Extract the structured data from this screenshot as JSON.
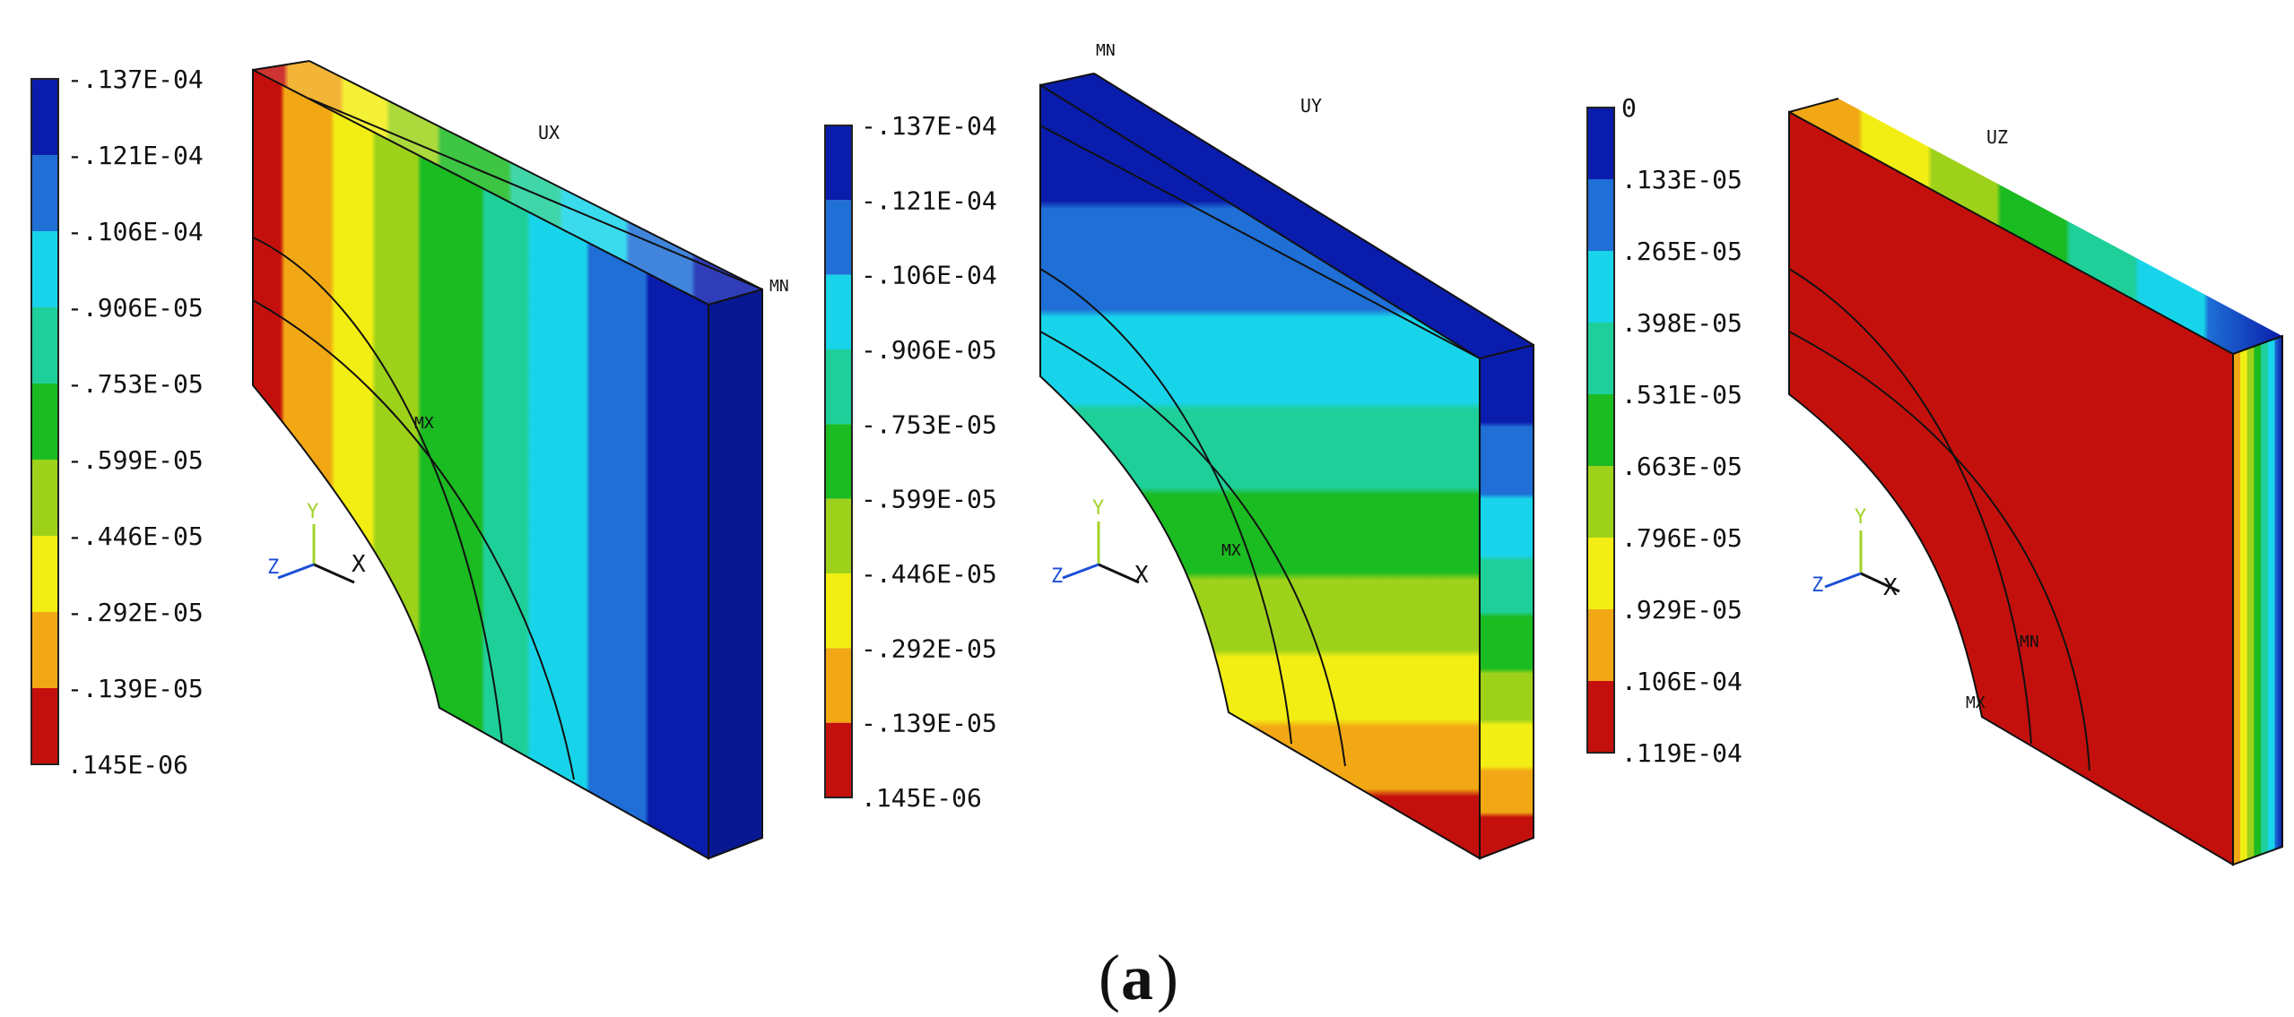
{
  "figure": {
    "caption_letter": "a",
    "panels": [
      {
        "id": "ux",
        "label": "UX",
        "min_tag": "MN",
        "max_tag": "MX",
        "legend": {
          "colors": [
            "#0a1cab",
            "#1f6fd6",
            "#18d4ea",
            "#1fcf9a",
            "#1bbb22",
            "#9ed21a",
            "#f2ee14",
            "#f1a814",
            "#c4100d"
          ],
          "labels": [
            "-.137E-04",
            "-.121E-04",
            "-.106E-04",
            "-.906E-05",
            "-.753E-05",
            "-.599E-05",
            "-.446E-05",
            "-.292E-05",
            "-.139E-05",
            ".145E-06"
          ]
        },
        "triad": {
          "y": "Y",
          "x": "X",
          "z": "Z"
        }
      },
      {
        "id": "uy",
        "label": "UY",
        "min_tag": "MN",
        "max_tag": "MX",
        "legend": {
          "colors": [
            "#0a1cab",
            "#1f6fd6",
            "#18d4ea",
            "#1fcf9a",
            "#1bbb22",
            "#9ed21a",
            "#f2ee14",
            "#f1a814",
            "#c4100d"
          ],
          "labels": [
            "-.137E-04",
            "-.121E-04",
            "-.106E-04",
            "-.906E-05",
            "-.753E-05",
            "-.599E-05",
            "-.446E-05",
            "-.292E-05",
            "-.139E-05",
            ".145E-06"
          ]
        },
        "triad": {
          "y": "Y",
          "x": "X",
          "z": "Z"
        }
      },
      {
        "id": "uz",
        "label": "UZ",
        "min_tag": "MN",
        "max_tag": "MX",
        "legend": {
          "colors": [
            "#0a1cab",
            "#1f6fd6",
            "#18d4ea",
            "#1fcf9a",
            "#1bbb22",
            "#9ed21a",
            "#f2ee14",
            "#f1a814",
            "#c4100d"
          ],
          "labels": [
            "0",
            ".133E-05",
            ".265E-05",
            ".398E-05",
            ".531E-05",
            ".663E-05",
            ".796E-05",
            ".929E-05",
            ".106E-04",
            ".119E-04"
          ]
        },
        "triad": {
          "y": "Y",
          "x": "X",
          "z": "Z"
        }
      }
    ]
  }
}
